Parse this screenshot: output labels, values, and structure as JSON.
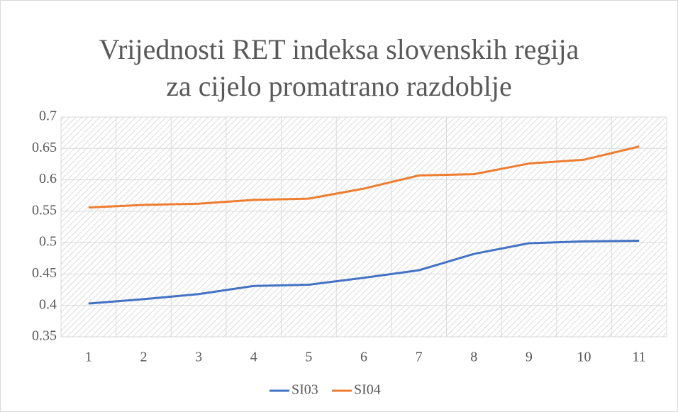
{
  "chart_data": {
    "type": "line",
    "title": [
      "Vrijednosti RET indeksa slovenskih regija",
      "za cijelo promatrano razdoblje"
    ],
    "categories": [
      "1",
      "2",
      "3",
      "4",
      "5",
      "6",
      "7",
      "8",
      "9",
      "10",
      "11"
    ],
    "series": [
      {
        "name": "SI03",
        "color": "#4472c4",
        "values": [
          0.403,
          0.41,
          0.418,
          0.431,
          0.433,
          0.444,
          0.456,
          0.482,
          0.499,
          0.502,
          0.503
        ]
      },
      {
        "name": "SI04",
        "color": "#ed7d31",
        "values": [
          0.556,
          0.56,
          0.562,
          0.568,
          0.57,
          0.586,
          0.607,
          0.609,
          0.626,
          0.632,
          0.653
        ]
      }
    ],
    "ylim": [
      0.35,
      0.7
    ],
    "yticks": [
      0.35,
      0.4,
      0.45,
      0.5,
      0.55,
      0.6,
      0.65,
      0.7
    ],
    "grid": true,
    "legend": "bottom"
  }
}
